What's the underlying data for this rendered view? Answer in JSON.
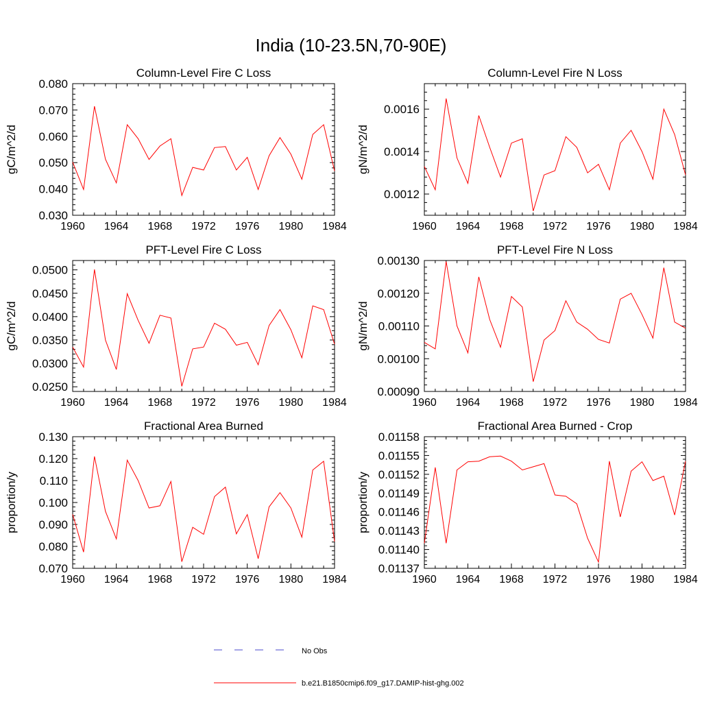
{
  "figure": {
    "title": "India (10-23.5N,70-90E)"
  },
  "legend": {
    "entries": [
      {
        "label": "No Obs",
        "color": "#4a4acc",
        "style": "dashed"
      },
      {
        "label": "b.e21.B1850cmip6.f09_g17.DAMIP-hist-ghg.002",
        "color": "#ff0000",
        "style": "solid"
      }
    ]
  },
  "chart_data": [
    {
      "type": "line",
      "title": "Column-Level Fire C Loss",
      "ylabel": "gC/m^2/d",
      "xlim": [
        1960,
        1984
      ],
      "ylim": [
        0.03,
        0.08
      ],
      "yticks": [
        0.03,
        0.04,
        0.05,
        0.06,
        0.07,
        0.08
      ],
      "ytick_labels": [
        "0.030",
        "0.040",
        "0.050",
        "0.060",
        "0.070",
        "0.080"
      ],
      "xticks": [
        1960,
        1964,
        1968,
        1972,
        1976,
        1980,
        1984
      ],
      "x": [
        1960,
        1961,
        1962,
        1963,
        1964,
        1965,
        1966,
        1967,
        1968,
        1969,
        1970,
        1971,
        1972,
        1973,
        1974,
        1975,
        1976,
        1977,
        1978,
        1979,
        1980,
        1981,
        1982,
        1983,
        1984
      ],
      "series": [
        {
          "color": "#ff0000",
          "values": [
            0.0502,
            0.0398,
            0.0714,
            0.0513,
            0.0423,
            0.0644,
            0.0591,
            0.0512,
            0.0563,
            0.0591,
            0.0375,
            0.0482,
            0.0472,
            0.0557,
            0.0561,
            0.0472,
            0.052,
            0.0398,
            0.0526,
            0.0595,
            0.0532,
            0.0437,
            0.0607,
            0.0644,
            0.0468
          ]
        }
      ]
    },
    {
      "type": "line",
      "title": "Column-Level Fire N Loss",
      "ylabel": "gN/m^2/d",
      "xlim": [
        1960,
        1984
      ],
      "ylim": [
        0.0011,
        0.00172
      ],
      "yticks": [
        0.0012,
        0.0014,
        0.0016
      ],
      "ytick_labels": [
        "0.0012",
        "0.0014",
        "0.0016"
      ],
      "xticks": [
        1960,
        1964,
        1968,
        1972,
        1976,
        1980,
        1984
      ],
      "x": [
        1960,
        1961,
        1962,
        1963,
        1964,
        1965,
        1966,
        1967,
        1968,
        1969,
        1970,
        1971,
        1972,
        1973,
        1974,
        1975,
        1976,
        1977,
        1978,
        1979,
        1980,
        1981,
        1982,
        1983,
        1984
      ],
      "series": [
        {
          "color": "#ff0000",
          "values": [
            0.00133,
            0.00122,
            0.00165,
            0.00137,
            0.00125,
            0.00157,
            0.00142,
            0.00128,
            0.00144,
            0.00146,
            0.00112,
            0.00129,
            0.00131,
            0.00147,
            0.00142,
            0.0013,
            0.00134,
            0.00122,
            0.00144,
            0.0015,
            0.0014,
            0.00127,
            0.0016,
            0.00148,
            0.00129
          ]
        }
      ]
    },
    {
      "type": "line",
      "title": "PFT-Level Fire C Loss",
      "ylabel": "gC/m^2/d",
      "xlim": [
        1960,
        1984
      ],
      "ylim": [
        0.024,
        0.052
      ],
      "yticks": [
        0.025,
        0.03,
        0.035,
        0.04,
        0.045,
        0.05
      ],
      "ytick_labels": [
        "0.0250",
        "0.0300",
        "0.0350",
        "0.0400",
        "0.0450",
        "0.0500"
      ],
      "xticks": [
        1960,
        1964,
        1968,
        1972,
        1976,
        1980,
        1984
      ],
      "x": [
        1960,
        1961,
        1962,
        1963,
        1964,
        1965,
        1966,
        1967,
        1968,
        1969,
        1970,
        1971,
        1972,
        1973,
        1974,
        1975,
        1976,
        1977,
        1978,
        1979,
        1980,
        1981,
        1982,
        1983,
        1984
      ],
      "series": [
        {
          "color": "#ff0000",
          "values": [
            0.0335,
            0.0292,
            0.0501,
            0.035,
            0.0287,
            0.0449,
            0.0392,
            0.0343,
            0.0403,
            0.0397,
            0.0251,
            0.0331,
            0.0335,
            0.0386,
            0.0373,
            0.0339,
            0.0345,
            0.0297,
            0.0381,
            0.0415,
            0.0372,
            0.0312,
            0.0423,
            0.0415,
            0.0341
          ]
        }
      ]
    },
    {
      "type": "line",
      "title": "PFT-Level Fire N Loss",
      "ylabel": "gN/m^2/d",
      "xlim": [
        1960,
        1984
      ],
      "ylim": [
        0.0009,
        0.0013
      ],
      "yticks": [
        0.0009,
        0.001,
        0.0011,
        0.0012,
        0.0013
      ],
      "ytick_labels": [
        "0.00090",
        "0.00100",
        "0.00110",
        "0.00120",
        "0.00130"
      ],
      "xticks": [
        1960,
        1964,
        1968,
        1972,
        1976,
        1980,
        1984
      ],
      "x": [
        1960,
        1961,
        1962,
        1963,
        1964,
        1965,
        1966,
        1967,
        1968,
        1969,
        1970,
        1971,
        1972,
        1973,
        1974,
        1975,
        1976,
        1977,
        1978,
        1979,
        1980,
        1981,
        1982,
        1983,
        1984
      ],
      "series": [
        {
          "color": "#ff0000",
          "values": [
            0.00105,
            0.00103,
            0.001297,
            0.0011,
            0.001018,
            0.00125,
            0.00112,
            0.001035,
            0.00119,
            0.001158,
            0.00093,
            0.001057,
            0.001086,
            0.001177,
            0.001112,
            0.00109,
            0.001059,
            0.001048,
            0.001182,
            0.0012,
            0.001135,
            0.001063,
            0.001278,
            0.001112,
            0.001093
          ]
        }
      ]
    },
    {
      "type": "line",
      "title": "Fractional Area Burned",
      "ylabel": "proportion/y",
      "xlim": [
        1960,
        1984
      ],
      "ylim": [
        0.07,
        0.13
      ],
      "yticks": [
        0.07,
        0.08,
        0.09,
        0.1,
        0.11,
        0.12,
        0.13
      ],
      "ytick_labels": [
        "0.070",
        "0.080",
        "0.090",
        "0.100",
        "0.110",
        "0.120",
        "0.130"
      ],
      "xticks": [
        1960,
        1964,
        1968,
        1972,
        1976,
        1980,
        1984
      ],
      "x": [
        1960,
        1961,
        1962,
        1963,
        1964,
        1965,
        1966,
        1967,
        1968,
        1969,
        1970,
        1971,
        1972,
        1973,
        1974,
        1975,
        1976,
        1977,
        1978,
        1979,
        1980,
        1981,
        1982,
        1983,
        1984
      ],
      "series": [
        {
          "color": "#ff0000",
          "values": [
            0.0946,
            0.0774,
            0.121,
            0.096,
            0.0834,
            0.1193,
            0.11,
            0.0975,
            0.0985,
            0.1096,
            0.073,
            0.0887,
            0.0855,
            0.1027,
            0.107,
            0.0857,
            0.0945,
            0.0744,
            0.098,
            0.1045,
            0.0975,
            0.0842,
            0.1148,
            0.1188,
            0.0822
          ]
        }
      ]
    },
    {
      "type": "line",
      "title": "Fractional Area Burned - Crop",
      "ylabel": "proportion/y",
      "xlim": [
        1960,
        1984
      ],
      "ylim": [
        0.01137,
        0.01158
      ],
      "yticks": [
        0.01137,
        0.0114,
        0.01143,
        0.01146,
        0.01149,
        0.01152,
        0.01155,
        0.01158
      ],
      "ytick_labels": [
        "0.01137",
        "0.01140",
        "0.01143",
        "0.01146",
        "0.01149",
        "0.01152",
        "0.01155",
        "0.01158"
      ],
      "xticks": [
        1960,
        1964,
        1968,
        1972,
        1976,
        1980,
        1984
      ],
      "x": [
        1960,
        1961,
        1962,
        1963,
        1964,
        1965,
        1966,
        1967,
        1968,
        1969,
        1970,
        1971,
        1972,
        1973,
        1974,
        1975,
        1976,
        1977,
        1978,
        1979,
        1980,
        1981,
        1982,
        1983,
        1984
      ],
      "series": [
        {
          "color": "#ff0000",
          "values": [
            0.01141,
            0.011531,
            0.01141,
            0.011527,
            0.01154,
            0.011541,
            0.011548,
            0.011549,
            0.011541,
            0.011527,
            0.011532,
            0.011537,
            0.011487,
            0.011485,
            0.011473,
            0.011418,
            0.01138,
            0.011541,
            0.011452,
            0.011525,
            0.01154,
            0.01151,
            0.011517,
            0.011455,
            0.011541
          ]
        }
      ]
    }
  ]
}
